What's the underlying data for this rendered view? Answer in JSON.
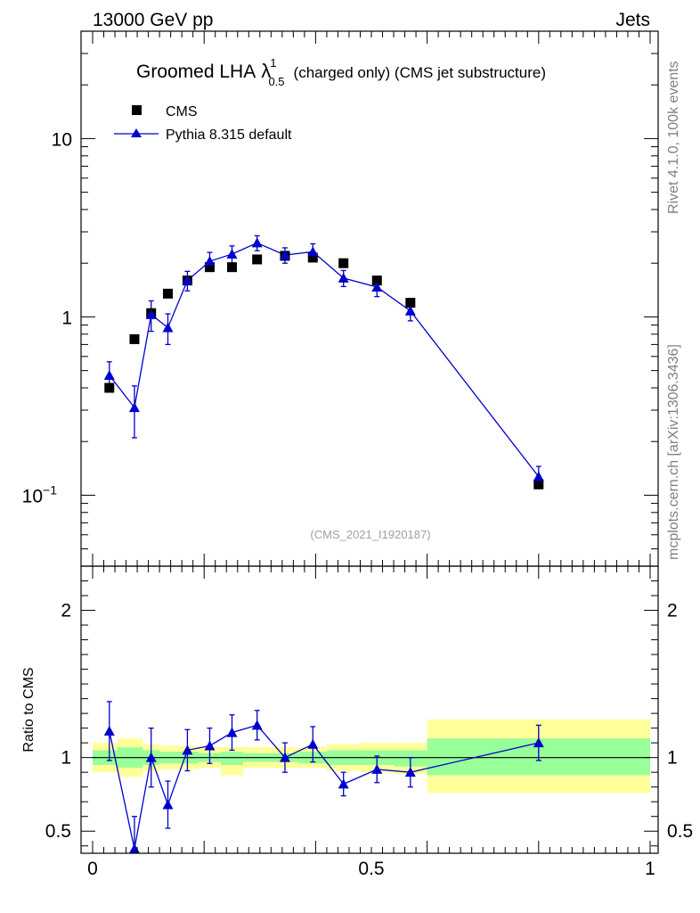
{
  "header": {
    "left": "13000 GeV pp",
    "right": "Jets"
  },
  "side_text": {
    "top": "Rivet 4.1.0,  100k events",
    "bottom": "mcplots.cern.ch [arXiv:1306.3436]"
  },
  "chart_data": [
    {
      "type": "scatter",
      "panel": "main",
      "title": {
        "main": "Groomed LHA",
        "lambda": "λ",
        "sup": "1",
        "sub": "0.5",
        "rest": "(charged only) (CMS jet substructure)"
      },
      "analysis_id": "(CMS_2021_I1920187)",
      "yscale": "log",
      "xlim": [
        0,
        1
      ],
      "ylim": [
        0.04,
        40
      ],
      "yticks": [
        {
          "value": 10,
          "base": "10",
          "exp": ""
        },
        {
          "value": 1,
          "base": "1",
          "exp": ""
        },
        {
          "value": 0.1,
          "base": "10",
          "exp": "−1"
        }
      ],
      "legend": {
        "position": "top-left",
        "entries": [
          {
            "label": "CMS",
            "marker": "square"
          },
          {
            "label": "Pythia 8.315 default",
            "marker": "triangle"
          }
        ]
      },
      "series": [
        {
          "name": "CMS",
          "color": "#000000",
          "marker": "square",
          "x": [
            0.03,
            0.075,
            0.105,
            0.135,
            0.17,
            0.21,
            0.25,
            0.295,
            0.345,
            0.395,
            0.45,
            0.51,
            0.57,
            0.8
          ],
          "y": [
            0.4,
            0.75,
            1.05,
            1.35,
            1.6,
            1.9,
            1.9,
            2.1,
            2.2,
            2.15,
            2.0,
            1.6,
            1.2,
            0.115
          ]
        },
        {
          "name": "Pythia 8.315 default",
          "color": "#0000cc",
          "marker": "triangle",
          "x": [
            0.03,
            0.075,
            0.105,
            0.135,
            0.17,
            0.21,
            0.25,
            0.295,
            0.345,
            0.395,
            0.45,
            0.51,
            0.57,
            0.8
          ],
          "y": [
            0.47,
            0.31,
            1.03,
            0.87,
            1.6,
            2.05,
            2.25,
            2.6,
            2.22,
            2.32,
            1.65,
            1.47,
            1.08,
            0.127
          ],
          "yerr": [
            0.09,
            0.1,
            0.2,
            0.17,
            0.2,
            0.25,
            0.25,
            0.25,
            0.22,
            0.25,
            0.17,
            0.17,
            0.13,
            0.018
          ]
        }
      ]
    },
    {
      "type": "line",
      "panel": "ratio",
      "ylabel": "Ratio to CMS",
      "xlim": [
        0,
        1
      ],
      "ylim": [
        0.35,
        2.3
      ],
      "xticks": [
        {
          "value": 0,
          "label": "0"
        },
        {
          "value": 0.5,
          "label": "0.5"
        },
        {
          "value": 1,
          "label": "1"
        }
      ],
      "yticks": [
        {
          "value": 2,
          "label": "2"
        },
        {
          "value": 1,
          "label": "1"
        },
        {
          "value": 0.5,
          "label": "0.5"
        }
      ],
      "bands": [
        {
          "x0": 0.0,
          "x1": 0.045,
          "y_lo": 0.9,
          "y_hi": 1.1,
          "g_lo": 0.95,
          "g_hi": 1.05
        },
        {
          "x0": 0.045,
          "x1": 0.09,
          "y_lo": 0.87,
          "y_hi": 1.13,
          "g_lo": 0.93,
          "g_hi": 1.07
        },
        {
          "x0": 0.09,
          "x1": 0.12,
          "y_lo": 0.91,
          "y_hi": 1.09,
          "g_lo": 0.95,
          "g_hi": 1.05
        },
        {
          "x0": 0.12,
          "x1": 0.15,
          "y_lo": 0.92,
          "y_hi": 1.08,
          "g_lo": 0.96,
          "g_hi": 1.04
        },
        {
          "x0": 0.15,
          "x1": 0.19,
          "y_lo": 0.92,
          "y_hi": 1.08,
          "g_lo": 0.96,
          "g_hi": 1.04
        },
        {
          "x0": 0.19,
          "x1": 0.23,
          "y_lo": 0.93,
          "y_hi": 1.07,
          "g_lo": 0.97,
          "g_hi": 1.03
        },
        {
          "x0": 0.23,
          "x1": 0.27,
          "y_lo": 0.88,
          "y_hi": 1.07,
          "g_lo": 0.95,
          "g_hi": 1.04
        },
        {
          "x0": 0.27,
          "x1": 0.32,
          "y_lo": 0.93,
          "y_hi": 1.07,
          "g_lo": 0.97,
          "g_hi": 1.03
        },
        {
          "x0": 0.32,
          "x1": 0.37,
          "y_lo": 0.93,
          "y_hi": 1.07,
          "g_lo": 0.97,
          "g_hi": 1.03
        },
        {
          "x0": 0.37,
          "x1": 0.42,
          "y_lo": 0.93,
          "y_hi": 1.07,
          "g_lo": 0.96,
          "g_hi": 1.04
        },
        {
          "x0": 0.42,
          "x1": 0.48,
          "y_lo": 0.91,
          "y_hi": 1.09,
          "g_lo": 0.95,
          "g_hi": 1.05
        },
        {
          "x0": 0.48,
          "x1": 0.54,
          "y_lo": 0.9,
          "y_hi": 1.1,
          "g_lo": 0.95,
          "g_hi": 1.05
        },
        {
          "x0": 0.54,
          "x1": 0.6,
          "y_lo": 0.89,
          "y_hi": 1.1,
          "g_lo": 0.94,
          "g_hi": 1.05
        },
        {
          "x0": 0.6,
          "x1": 1.0,
          "y_lo": 0.76,
          "y_hi": 1.26,
          "g_lo": 0.88,
          "g_hi": 1.13
        }
      ],
      "band_colors": {
        "yellow": "#ffff99",
        "green": "#99ff99"
      },
      "series": [
        {
          "name": "Pythia 8.315 default",
          "color": "#0000cc",
          "x": [
            0.03,
            0.075,
            0.105,
            0.135,
            0.17,
            0.21,
            0.25,
            0.295,
            0.345,
            0.395,
            0.45,
            0.51,
            0.57,
            0.8
          ],
          "y": [
            1.18,
            0.38,
            1.0,
            0.68,
            1.05,
            1.08,
            1.17,
            1.22,
            1.0,
            1.09,
            0.82,
            0.92,
            0.9,
            1.1
          ],
          "yerr": [
            0.2,
            0.22,
            0.2,
            0.16,
            0.14,
            0.12,
            0.12,
            0.1,
            0.1,
            0.12,
            0.08,
            0.09,
            0.1,
            0.12
          ]
        }
      ]
    }
  ]
}
